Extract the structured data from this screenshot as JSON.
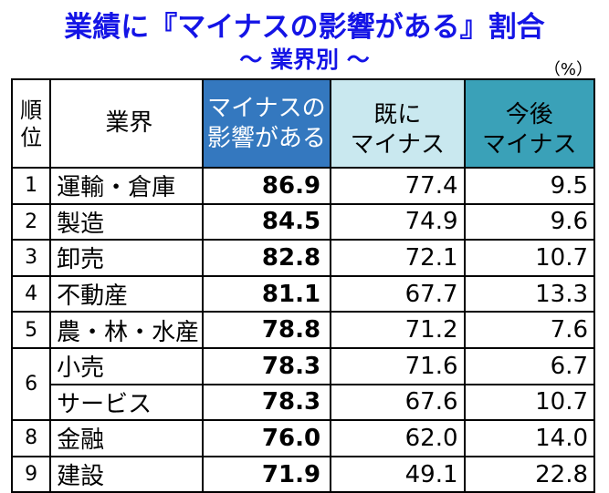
{
  "title": "業績に『マイナスの影響がある』割合",
  "subtitle": "～ 業界別 ～",
  "unit": "（%）",
  "headers": {
    "rank_line1": "順",
    "rank_line2": "位",
    "industry": "業界",
    "minus_line1": "マイナスの",
    "minus_line2": "影響がある",
    "already_line1": "既に",
    "already_line2": "マイナス",
    "future_line1": "今後",
    "future_line2": "マイナス"
  },
  "rows": [
    {
      "rank": "1",
      "industry": "運輸・倉庫",
      "minus": "86.9",
      "already": "77.4",
      "future": "9.5"
    },
    {
      "rank": "2",
      "industry": "製造",
      "minus": "84.5",
      "already": "74.9",
      "future": "9.6"
    },
    {
      "rank": "3",
      "industry": "卸売",
      "minus": "82.8",
      "already": "72.1",
      "future": "10.7"
    },
    {
      "rank": "4",
      "industry": "不動産",
      "minus": "81.1",
      "already": "67.7",
      "future": "13.3"
    },
    {
      "rank": "5",
      "industry": "農・林・水産",
      "minus": "78.8",
      "already": "71.2",
      "future": "7.6"
    },
    {
      "rank": "6",
      "industry": "小売",
      "minus": "78.3",
      "already": "71.6",
      "future": "6.7"
    },
    {
      "rank": "",
      "industry": "サービス",
      "minus": "78.3",
      "already": "67.6",
      "future": "10.7"
    },
    {
      "rank": "8",
      "industry": "金融",
      "minus": "76.0",
      "already": "62.0",
      "future": "14.0"
    },
    {
      "rank": "9",
      "industry": "建設",
      "minus": "71.9",
      "already": "49.1",
      "future": "22.8"
    }
  ]
}
